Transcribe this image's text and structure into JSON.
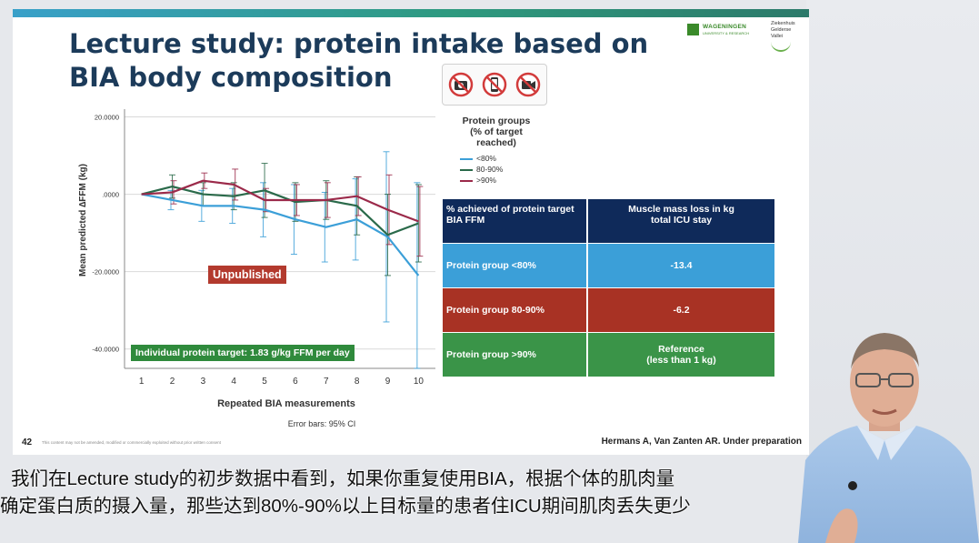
{
  "slide": {
    "title": "Lecture study: protein intake based on BIA body composition",
    "title_line1": "Lecture study: protein intake based on",
    "title_line2": "BIA body composition",
    "slide_number": "42",
    "disclaimer": "This content may not be amended, modified or commercially exploited without prior written consent",
    "citation": "Hermans A, Van Zanten AR. Under preparation",
    "logos": {
      "wageningen_name": "WAGENINGEN",
      "wageningen_sub": "UNIVERSITY & RESEARCH",
      "hospital_line1": "Ziekenhuis",
      "hospital_line2": "Gelderse",
      "hospital_line3": "Vallei"
    },
    "no_icons": [
      "no-camera-icon",
      "no-phone-icon",
      "no-video-icon"
    ],
    "badge_unpublished": "Unpublished",
    "badge_target": "Individual protein target: 1.83 g/kg FFM per day"
  },
  "chart_data": {
    "type": "line",
    "xlabel": "Repeated BIA measurements",
    "ylabel": "Mean predicted  ∆FFM (kg)",
    "footnote": "Error bars: 95% CI",
    "x": [
      1,
      2,
      3,
      4,
      5,
      6,
      7,
      8,
      9,
      10
    ],
    "ylim": [
      -45,
      22
    ],
    "yticks": [
      20,
      0,
      -20,
      -40
    ],
    "ytick_labels": [
      "20.0000",
      ".0000",
      "-20.0000",
      "-40.0000"
    ],
    "grid": true,
    "legend_title": "Protein groups (% of target reached)",
    "legend_title_lines": [
      "Protein groups",
      "(% of target",
      "reached)"
    ],
    "legend_position": "top-right",
    "series": [
      {
        "name": "<80%",
        "color": "#3b9fd8",
        "values": [
          0,
          -1.5,
          -3,
          -3,
          -4,
          -6.5,
          -8.5,
          -6.5,
          -11,
          -21
        ],
        "err": [
          0,
          2.5,
          4,
          4.5,
          7,
          9,
          9,
          10.5,
          22,
          24
        ]
      },
      {
        "name": "80-90%",
        "color": "#2a6a4a",
        "values": [
          0,
          2,
          0,
          -0.5,
          1,
          -2,
          -1.5,
          -3,
          -10.5,
          -7.5
        ],
        "err": [
          0,
          3,
          3,
          3.5,
          7,
          5,
          5,
          7.5,
          10.5,
          10
        ]
      },
      {
        "name": ">90%",
        "color": "#9b2a4a",
        "values": [
          0,
          0.5,
          3.5,
          2.5,
          -1.5,
          -1.5,
          -1.5,
          -0.5,
          -4,
          -7
        ],
        "err": [
          0,
          3,
          2,
          4,
          3,
          4,
          4.5,
          5,
          9,
          9
        ]
      }
    ],
    "table": {
      "headers": [
        "% achieved of protein target BIA FFM",
        "Muscle mass loss in kg total ICU stay"
      ],
      "header_lines": [
        [
          "% achieved of protein target",
          "BIA FFM"
        ],
        [
          "Muscle mass loss in kg",
          "total ICU stay"
        ]
      ],
      "rows": [
        {
          "group": "Protein group <80%",
          "loss": "-13.4",
          "color": "#3b9fd8"
        },
        {
          "group": "Protein group 80-90%",
          "loss": "-6.2",
          "color": "#a83224"
        },
        {
          "group": "Protein group >90%",
          "loss": "Reference (less than 1 kg)",
          "loss_lines": [
            "Reference",
            "(less than 1 kg)"
          ],
          "color": "#3a9448"
        }
      ]
    }
  },
  "subtitles": {
    "line1": "我们在Lecture study的初步数据中看到，如果你重复使用BIA，根据个体的肌肉量",
    "line2": "确定蛋白质的摄入量，那些达到80%-90%以上目标量的患者住ICU期间肌肉丢失更少"
  }
}
